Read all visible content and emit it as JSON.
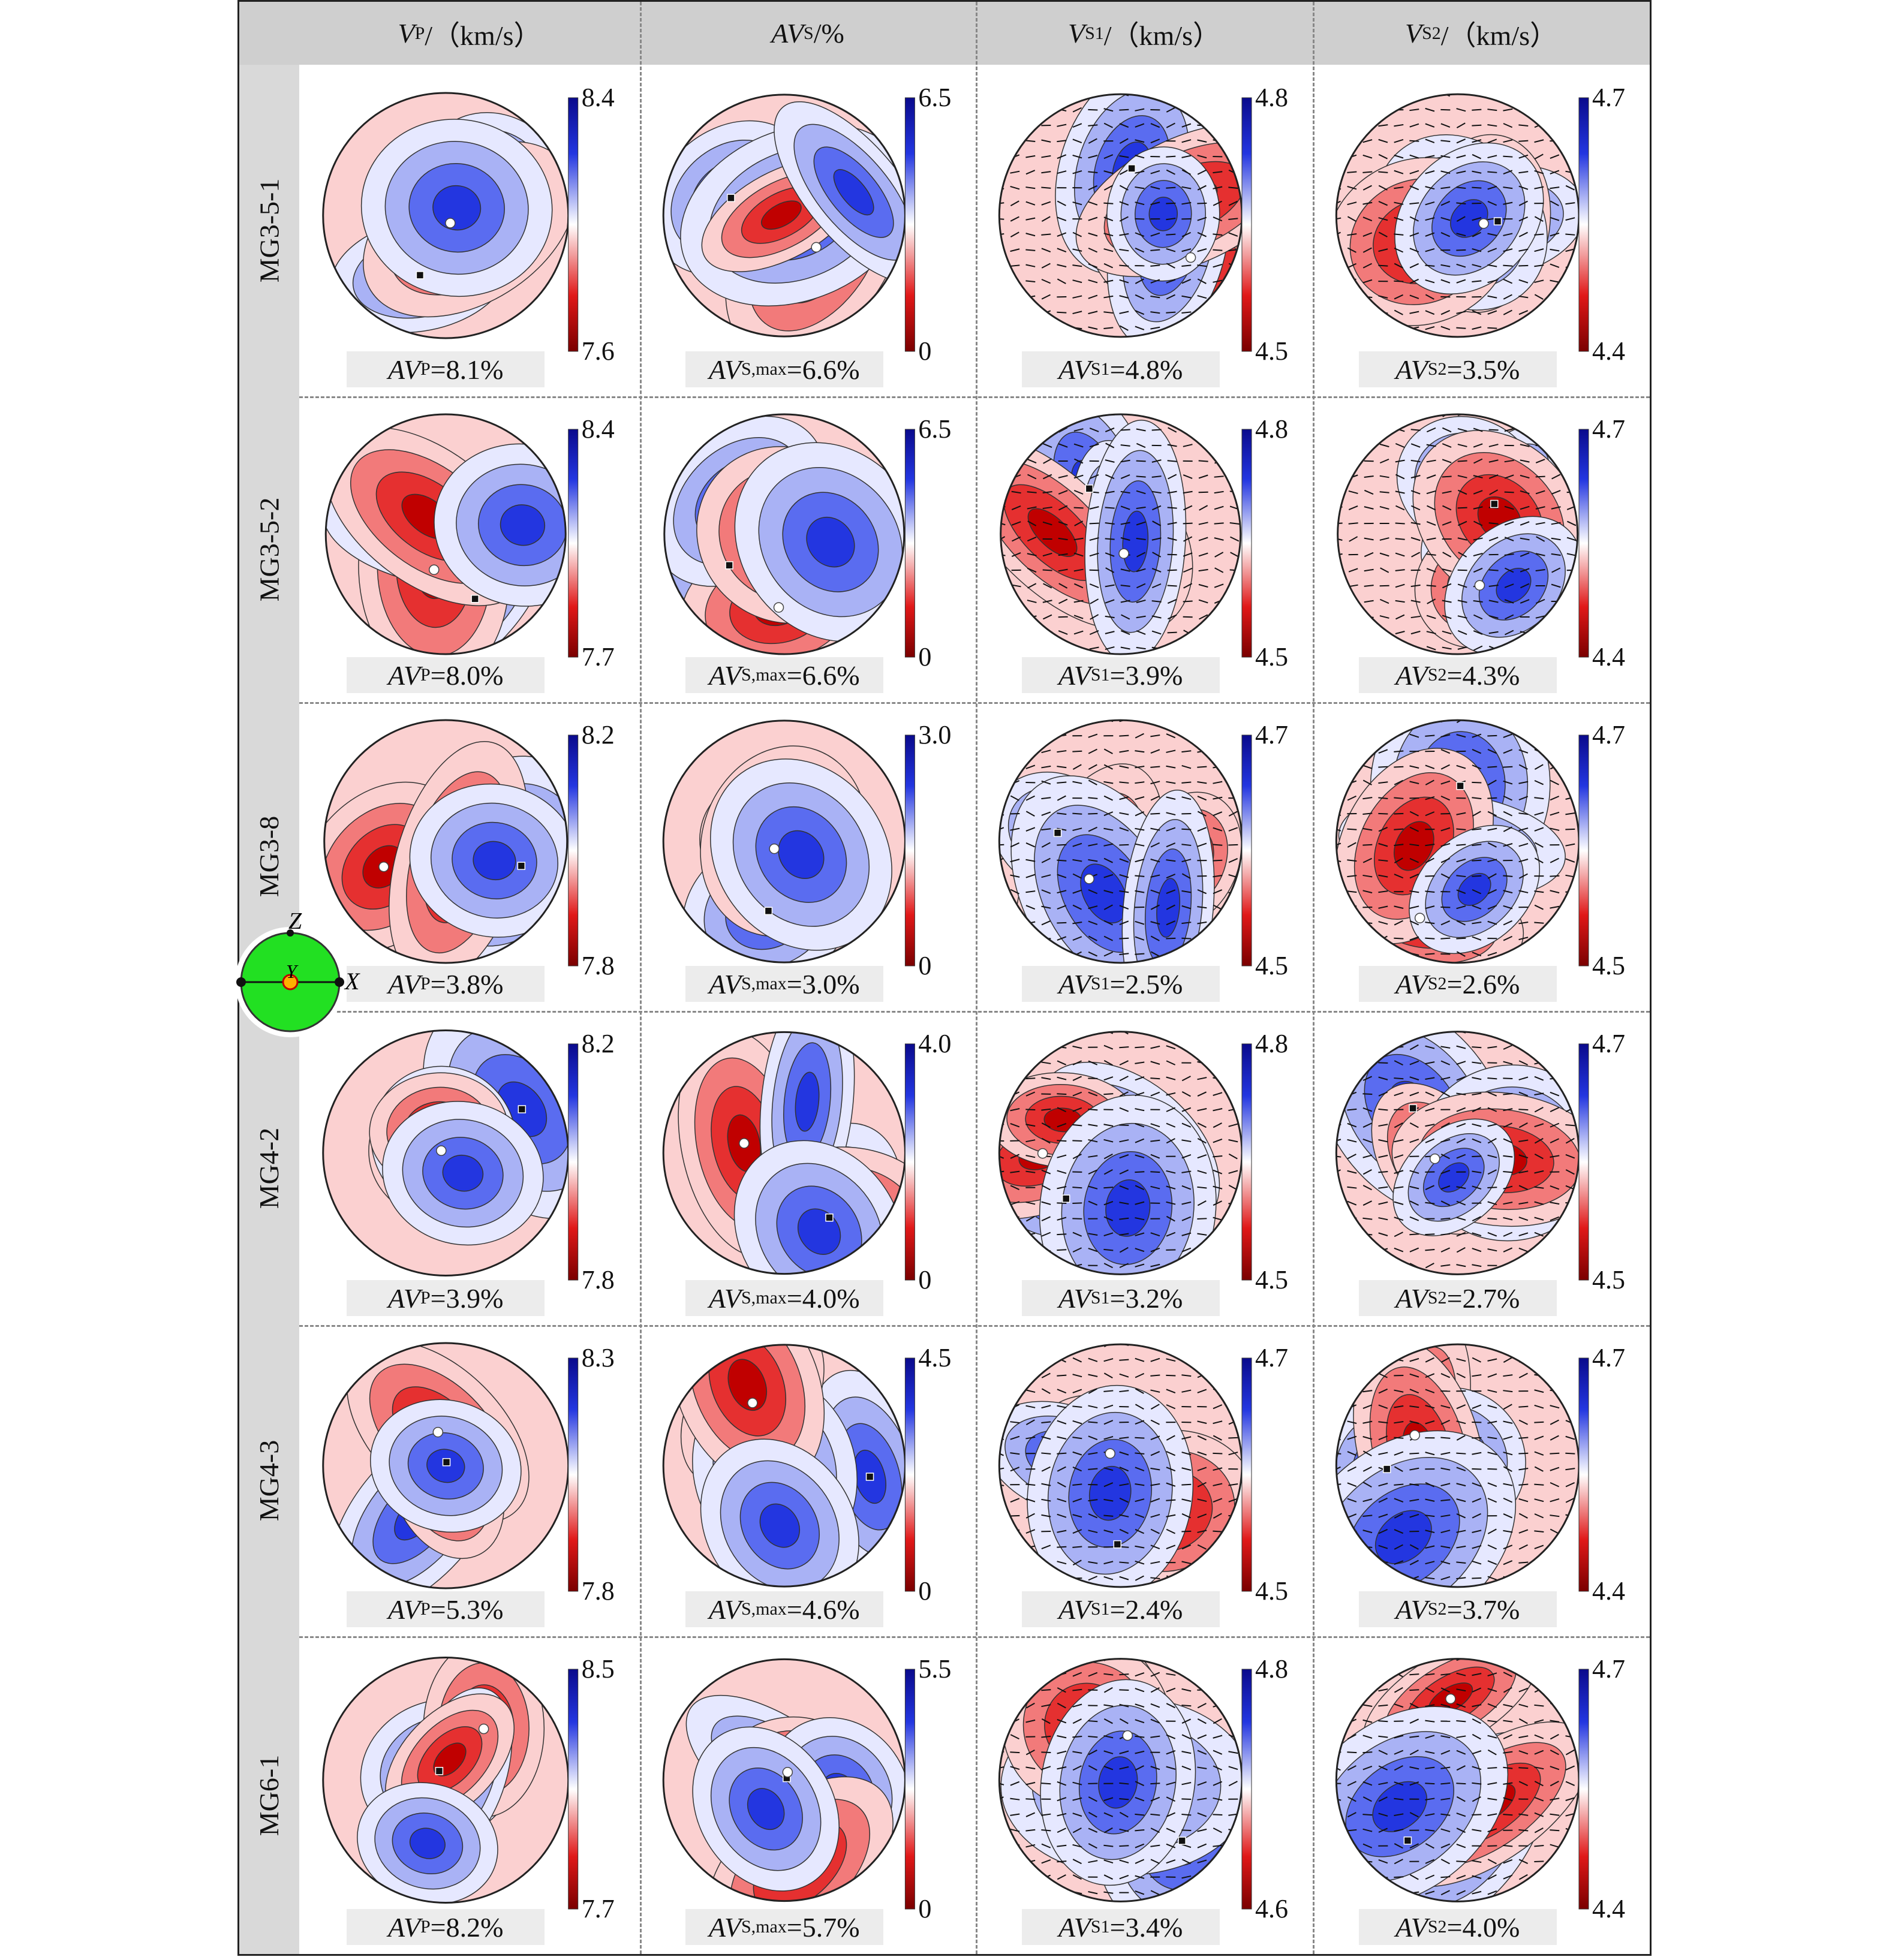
{
  "columns": [
    {
      "symbol": "V",
      "sub": "P",
      "tail": "/（km/s）"
    },
    {
      "symbol": "AV",
      "sub": "S",
      "tail": "/%"
    },
    {
      "symbol": "V",
      "sub": "S1",
      "tail": "/（km/s）"
    },
    {
      "symbol": "V",
      "sub": "S2",
      "tail": "/（km/s）"
    }
  ],
  "inset": {
    "z": "Z",
    "x": "X",
    "y": "Y"
  },
  "colors": {
    "max": "#0a0a8c",
    "high": "#2336e0",
    "mid": "#ffffff",
    "low": "#e01818",
    "min": "#7a0000"
  },
  "rows": [
    {
      "label": "MG3-5-1",
      "cells": [
        {
          "max": "8.4",
          "min": "7.6",
          "prefix": "AV",
          "sub": "P",
          "value": "=8.1%"
        },
        {
          "max": "6.5",
          "min": "0",
          "prefix": "AV",
          "sub": "S,max",
          "value": "=6.6%"
        },
        {
          "max": "4.8",
          "min": "4.5",
          "prefix": "AV",
          "sub": "S1",
          "value": "=4.8%"
        },
        {
          "max": "4.7",
          "min": "4.4",
          "prefix": "AV",
          "sub": "S2",
          "value": "=3.5%"
        }
      ]
    },
    {
      "label": "MG3-5-2",
      "cells": [
        {
          "max": "8.4",
          "min": "7.7",
          "prefix": "AV",
          "sub": "P",
          "value": "=8.0%"
        },
        {
          "max": "6.5",
          "min": "0",
          "prefix": "AV",
          "sub": "S,max",
          "value": "=6.6%"
        },
        {
          "max": "4.8",
          "min": "4.5",
          "prefix": "AV",
          "sub": "S1",
          "value": "=3.9%"
        },
        {
          "max": "4.7",
          "min": "4.4",
          "prefix": "AV",
          "sub": "S2",
          "value": "=4.3%"
        }
      ]
    },
    {
      "label": "MG3-8",
      "cells": [
        {
          "max": "8.2",
          "min": "7.8",
          "prefix": "AV",
          "sub": "P",
          "value": "=3.8%"
        },
        {
          "max": "3.0",
          "min": "0",
          "prefix": "AV",
          "sub": "S,max",
          "value": "=3.0%"
        },
        {
          "max": "4.7",
          "min": "4.5",
          "prefix": "AV",
          "sub": "S1",
          "value": "=2.5%"
        },
        {
          "max": "4.7",
          "min": "4.5",
          "prefix": "AV",
          "sub": "S2",
          "value": "=2.6%"
        }
      ]
    },
    {
      "label": "MG4-2",
      "cells": [
        {
          "max": "8.2",
          "min": "7.8",
          "prefix": "AV",
          "sub": "P",
          "value": "=3.9%"
        },
        {
          "max": "4.0",
          "min": "0",
          "prefix": "AV",
          "sub": "S,max",
          "value": "=4.0%"
        },
        {
          "max": "4.8",
          "min": "4.5",
          "prefix": "AV",
          "sub": "S1",
          "value": "=3.2%"
        },
        {
          "max": "4.7",
          "min": "4.5",
          "prefix": "AV",
          "sub": "S2",
          "value": "=2.7%"
        }
      ]
    },
    {
      "label": "MG4-3",
      "cells": [
        {
          "max": "8.3",
          "min": "7.8",
          "prefix": "AV",
          "sub": "P",
          "value": "=5.3%"
        },
        {
          "max": "4.5",
          "min": "0",
          "prefix": "AV",
          "sub": "S,max",
          "value": "=4.6%"
        },
        {
          "max": "4.7",
          "min": "4.5",
          "prefix": "AV",
          "sub": "S1",
          "value": "=2.4%"
        },
        {
          "max": "4.7",
          "min": "4.4",
          "prefix": "AV",
          "sub": "S2",
          "value": "=3.7%"
        }
      ]
    },
    {
      "label": "MG6-1",
      "cells": [
        {
          "max": "8.5",
          "min": "7.7",
          "prefix": "AV",
          "sub": "P",
          "value": "=8.2%"
        },
        {
          "max": "5.5",
          "min": "0",
          "prefix": "AV",
          "sub": "S,max",
          "value": "=5.7%"
        },
        {
          "max": "4.8",
          "min": "4.6",
          "prefix": "AV",
          "sub": "S1",
          "value": "=3.4%"
        },
        {
          "max": "4.7",
          "min": "4.4",
          "prefix": "AV",
          "sub": "S2",
          "value": "=4.0%"
        }
      ]
    }
  ]
}
